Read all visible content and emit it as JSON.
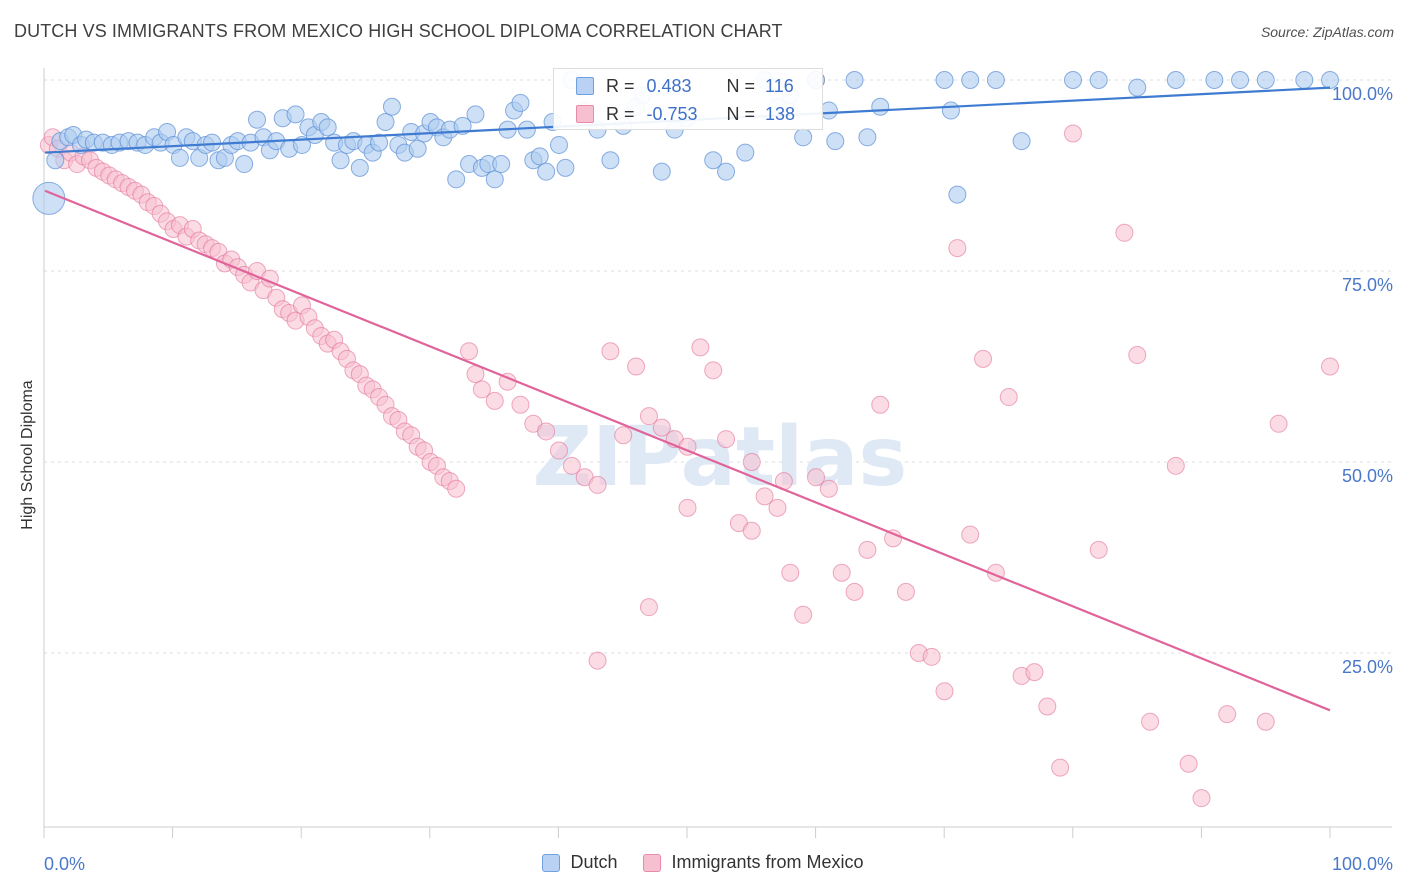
{
  "header": {
    "title": "DUTCH VS IMMIGRANTS FROM MEXICO HIGH SCHOOL DIPLOMA CORRELATION CHART",
    "source": "Source: ZipAtlas.com"
  },
  "watermark": "ZIPatlas",
  "stats": [
    {
      "r_label": "R =",
      "r_value": "0.483",
      "n_label": "N =",
      "n_value": "116",
      "color": "#6fa0e0",
      "fill": "#b9d1f2"
    },
    {
      "r_label": "R =",
      "r_value": "-0.753",
      "n_label": "N =",
      "n_value": "138",
      "color": "#e88aa8",
      "fill": "#f6c0d1"
    }
  ],
  "chart_data": {
    "type": "scatter",
    "ylabel": "High School Diploma",
    "xlim": [
      0,
      100
    ],
    "ylim": [
      0,
      100
    ],
    "x_tick_labels": [
      "0.0%",
      "100.0%"
    ],
    "y_tick_labels": [
      "100.0%",
      "75.0%",
      "50.0%",
      "25.0%"
    ],
    "y_tick_values": [
      100,
      75,
      50,
      25
    ],
    "grid": true,
    "legend": "bottom-center",
    "series": [
      {
        "name": "Dutch",
        "color": "#5b8fd6",
        "fill": "#aecbf0",
        "trend": [
          [
            0,
            90.5
          ],
          [
            100,
            99.0
          ]
        ],
        "points": [
          [
            0.3,
            84.5
          ],
          [
            0.8,
            89.5
          ],
          [
            1.2,
            92.0
          ],
          [
            1.8,
            92.5
          ],
          [
            2.2,
            92.8
          ],
          [
            2.8,
            91.5
          ],
          [
            3.2,
            92.2
          ],
          [
            3.8,
            91.8
          ],
          [
            4.5,
            91.8
          ],
          [
            5.2,
            91.5
          ],
          [
            5.8,
            91.8
          ],
          [
            6.5,
            92.0
          ],
          [
            7.2,
            91.8
          ],
          [
            7.8,
            91.5
          ],
          [
            8.5,
            92.5
          ],
          [
            9.0,
            91.8
          ],
          [
            9.5,
            93.2
          ],
          [
            10.0,
            91.5
          ],
          [
            10.5,
            89.8
          ],
          [
            11.0,
            92.5
          ],
          [
            11.5,
            92.0
          ],
          [
            12.0,
            89.8
          ],
          [
            12.5,
            91.5
          ],
          [
            13.0,
            91.8
          ],
          [
            13.5,
            89.5
          ],
          [
            14.0,
            89.8
          ],
          [
            14.5,
            91.5
          ],
          [
            15.0,
            92.0
          ],
          [
            15.5,
            89.0
          ],
          [
            16.0,
            91.8
          ],
          [
            16.5,
            94.8
          ],
          [
            17.0,
            92.5
          ],
          [
            17.5,
            90.8
          ],
          [
            18.0,
            92.0
          ],
          [
            18.5,
            95.0
          ],
          [
            19.0,
            91.0
          ],
          [
            19.5,
            95.5
          ],
          [
            20.0,
            91.5
          ],
          [
            20.5,
            93.8
          ],
          [
            21.0,
            92.8
          ],
          [
            21.5,
            94.5
          ],
          [
            22.0,
            93.8
          ],
          [
            22.5,
            91.8
          ],
          [
            23.0,
            89.5
          ],
          [
            23.5,
            91.5
          ],
          [
            24.0,
            92.0
          ],
          [
            24.5,
            88.5
          ],
          [
            25.0,
            91.5
          ],
          [
            25.5,
            90.5
          ],
          [
            26.0,
            91.8
          ],
          [
            26.5,
            94.5
          ],
          [
            27.0,
            96.5
          ],
          [
            27.5,
            91.5
          ],
          [
            28.0,
            90.5
          ],
          [
            28.5,
            93.2
          ],
          [
            29.0,
            91.0
          ],
          [
            29.5,
            93.0
          ],
          [
            30.0,
            94.5
          ],
          [
            30.5,
            93.8
          ],
          [
            31.0,
            92.5
          ],
          [
            31.5,
            93.5
          ],
          [
            32.0,
            87.0
          ],
          [
            32.5,
            94.0
          ],
          [
            33.0,
            89.0
          ],
          [
            33.5,
            95.5
          ],
          [
            34.0,
            88.5
          ],
          [
            34.5,
            89.0
          ],
          [
            35.0,
            87.0
          ],
          [
            35.5,
            89.0
          ],
          [
            36.0,
            93.5
          ],
          [
            36.5,
            96.0
          ],
          [
            37.0,
            97.0
          ],
          [
            37.5,
            93.5
          ],
          [
            38.0,
            89.5
          ],
          [
            38.5,
            90.0
          ],
          [
            39.0,
            88.0
          ],
          [
            39.5,
            94.5
          ],
          [
            40.0,
            91.5
          ],
          [
            40.5,
            88.5
          ],
          [
            41.0,
            100.0
          ],
          [
            42.0,
            96.0
          ],
          [
            43.0,
            93.5
          ],
          [
            44.0,
            89.5
          ],
          [
            45.0,
            94.0
          ],
          [
            46.0,
            96.5
          ],
          [
            46.5,
            98.0
          ],
          [
            48.0,
            88.0
          ],
          [
            49.0,
            93.5
          ],
          [
            50.0,
            95.0
          ],
          [
            52.0,
            89.5
          ],
          [
            53.0,
            88.0
          ],
          [
            54.5,
            90.5
          ],
          [
            56.0,
            100.0
          ],
          [
            57.0,
            96.5
          ],
          [
            58.0,
            98.0
          ],
          [
            59.0,
            92.5
          ],
          [
            60.0,
            100.0
          ],
          [
            61.0,
            96.0
          ],
          [
            61.5,
            92.0
          ],
          [
            63.0,
            100.0
          ],
          [
            64.0,
            92.5
          ],
          [
            65.0,
            96.5
          ],
          [
            70.0,
            100.0
          ],
          [
            70.5,
            96.0
          ],
          [
            71.0,
            85.0
          ],
          [
            72.0,
            100.0
          ],
          [
            74.0,
            100.0
          ],
          [
            76.0,
            92.0
          ],
          [
            80.0,
            100.0
          ],
          [
            82.0,
            100.0
          ],
          [
            85.0,
            99.0
          ],
          [
            88.0,
            100.0
          ],
          [
            91.0,
            100.0
          ],
          [
            93.0,
            100.0
          ],
          [
            95.0,
            100.0
          ],
          [
            98.0,
            100.0
          ],
          [
            100.0,
            100.0
          ]
        ]
      },
      {
        "name": "Immigrants from Mexico",
        "color": "#e2739a",
        "fill": "#f7bfd0",
        "trend": [
          [
            0,
            85.5
          ],
          [
            100,
            17.5
          ]
        ],
        "points": [
          [
            0.3,
            91.5
          ],
          [
            0.6,
            92.5
          ],
          [
            1.0,
            91.0
          ],
          [
            1.5,
            89.5
          ],
          [
            2.0,
            90.5
          ],
          [
            2.5,
            89.0
          ],
          [
            3.0,
            90.0
          ],
          [
            3.5,
            89.5
          ],
          [
            4.0,
            88.5
          ],
          [
            4.5,
            88.0
          ],
          [
            5.0,
            87.5
          ],
          [
            5.5,
            87.0
          ],
          [
            6.0,
            86.5
          ],
          [
            6.5,
            86.0
          ],
          [
            7.0,
            85.5
          ],
          [
            7.5,
            85.0
          ],
          [
            8.0,
            84.0
          ],
          [
            8.5,
            83.5
          ],
          [
            9.0,
            82.5
          ],
          [
            9.5,
            81.5
          ],
          [
            10.0,
            80.5
          ],
          [
            10.5,
            81.0
          ],
          [
            11.0,
            79.5
          ],
          [
            11.5,
            80.5
          ],
          [
            12.0,
            79.0
          ],
          [
            12.5,
            78.5
          ],
          [
            13.0,
            78.0
          ],
          [
            13.5,
            77.5
          ],
          [
            14.0,
            76.0
          ],
          [
            14.5,
            76.5
          ],
          [
            15.0,
            75.5
          ],
          [
            15.5,
            74.5
          ],
          [
            16.0,
            73.5
          ],
          [
            16.5,
            75.0
          ],
          [
            17.0,
            72.5
          ],
          [
            17.5,
            74.0
          ],
          [
            18.0,
            71.5
          ],
          [
            18.5,
            70.0
          ],
          [
            19.0,
            69.5
          ],
          [
            19.5,
            68.5
          ],
          [
            20.0,
            70.5
          ],
          [
            20.5,
            69.0
          ],
          [
            21.0,
            67.5
          ],
          [
            21.5,
            66.5
          ],
          [
            22.0,
            65.5
          ],
          [
            22.5,
            66.0
          ],
          [
            23.0,
            64.5
          ],
          [
            23.5,
            63.5
          ],
          [
            24.0,
            62.0
          ],
          [
            24.5,
            61.5
          ],
          [
            25.0,
            60.0
          ],
          [
            25.5,
            59.5
          ],
          [
            26.0,
            58.5
          ],
          [
            26.5,
            57.5
          ],
          [
            27.0,
            56.0
          ],
          [
            27.5,
            55.5
          ],
          [
            28.0,
            54.0
          ],
          [
            28.5,
            53.5
          ],
          [
            29.0,
            52.0
          ],
          [
            29.5,
            51.5
          ],
          [
            30.0,
            50.0
          ],
          [
            30.5,
            49.5
          ],
          [
            31.0,
            48.0
          ],
          [
            31.5,
            47.5
          ],
          [
            32.0,
            46.5
          ],
          [
            33.0,
            64.5
          ],
          [
            33.5,
            61.5
          ],
          [
            34.0,
            59.5
          ],
          [
            35.0,
            58.0
          ],
          [
            36.0,
            60.5
          ],
          [
            37.0,
            57.5
          ],
          [
            38.0,
            55.0
          ],
          [
            39.0,
            54.0
          ],
          [
            40.0,
            51.5
          ],
          [
            41.0,
            49.5
          ],
          [
            42.0,
            48.0
          ],
          [
            43.0,
            47.0
          ],
          [
            44.0,
            64.5
          ],
          [
            45.0,
            53.5
          ],
          [
            46.0,
            62.5
          ],
          [
            47.0,
            56.0
          ],
          [
            48.0,
            54.5
          ],
          [
            49.0,
            53.0
          ],
          [
            50.0,
            52.0
          ],
          [
            51.0,
            65.0
          ],
          [
            52.0,
            62.0
          ],
          [
            53.0,
            53.0
          ],
          [
            54.0,
            42.0
          ],
          [
            55.0,
            50.0
          ],
          [
            56.0,
            45.5
          ],
          [
            57.0,
            44.0
          ],
          [
            58.0,
            35.5
          ],
          [
            59.0,
            30.0
          ],
          [
            60.0,
            48.0
          ],
          [
            61.0,
            46.5
          ],
          [
            62.0,
            35.5
          ],
          [
            63.0,
            33.0
          ],
          [
            64.0,
            38.5
          ],
          [
            65.0,
            57.5
          ],
          [
            66.0,
            40.0
          ],
          [
            67.0,
            33.0
          ],
          [
            68.0,
            25.0
          ],
          [
            69.0,
            24.5
          ],
          [
            70.0,
            20.0
          ],
          [
            71.0,
            78.0
          ],
          [
            72.0,
            40.5
          ],
          [
            73.0,
            63.5
          ],
          [
            74.0,
            35.5
          ],
          [
            75.0,
            58.5
          ],
          [
            76.0,
            22.0
          ],
          [
            77.0,
            22.5
          ],
          [
            78.0,
            18.0
          ],
          [
            79.0,
            10.0
          ],
          [
            80.0,
            93.0
          ],
          [
            82.0,
            38.5
          ],
          [
            84.0,
            80.0
          ],
          [
            85.0,
            64.0
          ],
          [
            86.0,
            16.0
          ],
          [
            88.0,
            49.5
          ],
          [
            89.0,
            10.5
          ],
          [
            90.0,
            6.0
          ],
          [
            92.0,
            17.0
          ],
          [
            95.0,
            16.0
          ],
          [
            96.0,
            55.0
          ],
          [
            100.0,
            62.5
          ],
          [
            43.0,
            24.0
          ],
          [
            47.0,
            31.0
          ],
          [
            50.0,
            44.0
          ],
          [
            55.0,
            41.0
          ],
          [
            57.5,
            47.5
          ],
          [
            60.0,
            100.0
          ]
        ]
      }
    ]
  },
  "legend_items": [
    "Dutch",
    "Immigrants from Mexico"
  ]
}
